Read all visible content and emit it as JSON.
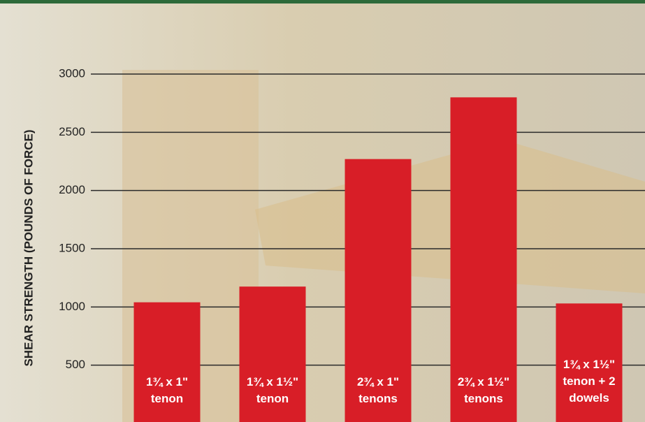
{
  "chart_data": {
    "type": "bar",
    "y_axis_label": "SHEAR STRENGTH (POUNDS OF FORCE)",
    "categories": [
      [
        "1¾ x 1\"",
        "tenon"
      ],
      [
        "1¾ x 1½\"",
        "tenon"
      ],
      [
        "2¾ x 1\"",
        "tenons"
      ],
      [
        "2¾ x 1½\"",
        "tenons"
      ],
      [
        "1¾ x 1½\"",
        "tenon + 2",
        "dowels"
      ]
    ],
    "values": [
      1040,
      1175,
      2270,
      2800,
      1030
    ],
    "color": "#d81e27",
    "ylim": [
      12,
      3000
    ],
    "yticks": [
      500,
      1000,
      1500,
      2000,
      2500,
      3000
    ],
    "grid": true
  }
}
